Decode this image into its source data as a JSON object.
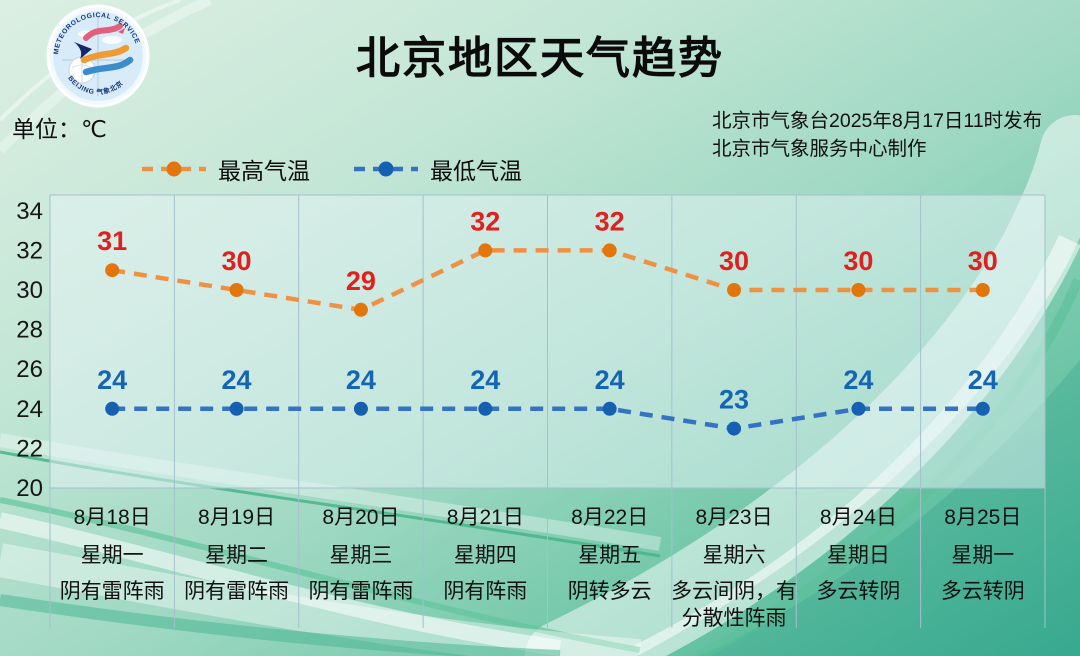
{
  "header": {
    "title": "北京地区天气趋势",
    "unit_label": "单位：℃",
    "publish_line1": "北京市气象台2025年8月17日11时发布",
    "publish_line2": "北京市气象服务中心制作",
    "logo": {
      "arc_top": "METEOROLOGICAL SERVICE",
      "arc_bottom": "BEIJING  气象北京"
    }
  },
  "legend": {
    "high_label": "最高气温",
    "low_label": "最低气温"
  },
  "colors": {
    "high_line": "#ef9143",
    "high_dot": "#e2760c",
    "high_label": "#e01f1f",
    "low_line": "#3672c2",
    "low_dot": "#1660b2",
    "low_label": "#1565b4",
    "grid": "#a3c0cd",
    "axis_text": "#161616"
  },
  "chart_data": {
    "type": "line",
    "title": "北京地区天气趋势",
    "unit": "℃",
    "ylim": [
      20,
      34.8
    ],
    "yticks": [
      34,
      32,
      30,
      28,
      26,
      24,
      22,
      20
    ],
    "grid": "vertical-only",
    "legend_position": "top-left",
    "categories": [
      {
        "date": "8月18日",
        "weekday": "星期一",
        "weather_lines": [
          "阴有雷阵雨"
        ]
      },
      {
        "date": "8月19日",
        "weekday": "星期二",
        "weather_lines": [
          "阴有雷阵雨"
        ]
      },
      {
        "date": "8月20日",
        "weekday": "星期三",
        "weather_lines": [
          "阴有雷阵雨"
        ]
      },
      {
        "date": "8月21日",
        "weekday": "星期四",
        "weather_lines": [
          "阴有阵雨"
        ]
      },
      {
        "date": "8月22日",
        "weekday": "星期五",
        "weather_lines": [
          "阴转多云"
        ]
      },
      {
        "date": "8月23日",
        "weekday": "星期六",
        "weather_lines": [
          "多云间阴，有",
          "分散性阵雨"
        ]
      },
      {
        "date": "8月24日",
        "weekday": "星期日",
        "weather_lines": [
          "多云转阴"
        ]
      },
      {
        "date": "8月25日",
        "weekday": "星期一",
        "weather_lines": [
          "多云转阴"
        ]
      }
    ],
    "series": [
      {
        "name": "最高气温",
        "values": [
          31,
          30,
          29,
          32,
          32,
          30,
          30,
          30
        ]
      },
      {
        "name": "最低气温",
        "values": [
          24,
          24,
          24,
          24,
          24,
          23,
          24,
          24
        ]
      }
    ]
  }
}
